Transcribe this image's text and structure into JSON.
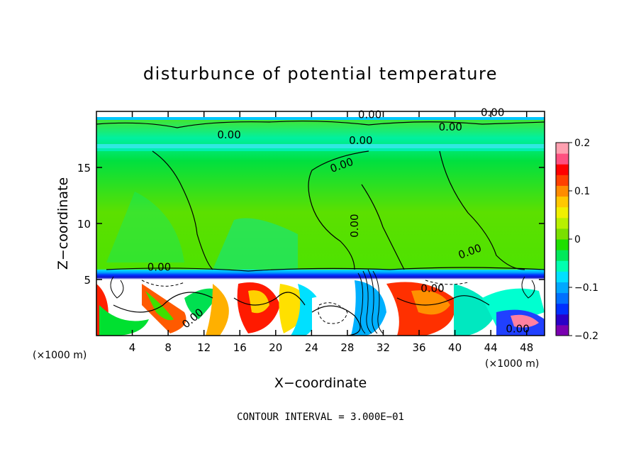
{
  "chart_data": {
    "type": "heatmap",
    "title": "disturbunce of potential temperature",
    "xlabel": "X−coordinate",
    "ylabel": "Z−coordinate",
    "x_unit_left": "(×1000 m)",
    "x_unit_right": "(×1000 m)",
    "footer": "CONTOUR INTERVAL = 3.000E−01",
    "xlim": [
      0,
      50
    ],
    "ylim": [
      0,
      20
    ],
    "x_ticks": [
      4,
      8,
      12,
      16,
      20,
      24,
      28,
      32,
      36,
      40,
      44,
      48
    ],
    "x_tick_labels": [
      "4",
      "8",
      "12",
      "16",
      "20",
      "24",
      "28",
      "32",
      "36",
      "40",
      "44",
      "48"
    ],
    "y_ticks": [
      5,
      10,
      15
    ],
    "y_tick_labels": [
      "5",
      "10",
      "15"
    ],
    "colorbar": {
      "range": [
        -0.2,
        0.2
      ],
      "ticks": [
        0.2,
        0.1,
        0,
        -0.1,
        -0.2
      ],
      "tick_labels": [
        "0.2",
        "0.1",
        "0",
        "−0.1",
        "−0.2"
      ],
      "colors": [
        "#7a00b0",
        "#2a00c8",
        "#0030ff",
        "#0070ff",
        "#00a8ff",
        "#00e0ff",
        "#00ffb0",
        "#00e85a",
        "#1fe000",
        "#7ae000",
        "#b8f000",
        "#f0f000",
        "#ffc800",
        "#ff8c00",
        "#ff4000",
        "#ff0000",
        "#ff5080",
        "#ffa0b0"
      ]
    },
    "contour_labels": [
      {
        "text": "0.00",
        "x": 14.8,
        "y": 17.6,
        "rotate": 0
      },
      {
        "text": "0.00",
        "x": 30.5,
        "y": 19.4,
        "rotate": 0
      },
      {
        "text": "0.00",
        "x": 44.2,
        "y": 19.6,
        "rotate": 0
      },
      {
        "text": "0.00",
        "x": 39.5,
        "y": 18.3,
        "rotate": 0
      },
      {
        "text": "0.00",
        "x": 29.5,
        "y": 17.1,
        "rotate": 0
      },
      {
        "text": "0.00",
        "x": 27.5,
        "y": 14.9,
        "rotate": -20
      },
      {
        "text": "0.00",
        "x": 29.2,
        "y": 9.8,
        "rotate": -90
      },
      {
        "text": "0.00",
        "x": 41.8,
        "y": 7.2,
        "rotate": -20
      },
      {
        "text": "0.00",
        "x": 7.0,
        "y": 5.8,
        "rotate": 0
      },
      {
        "text": "0.00",
        "x": 37.5,
        "y": 3.9,
        "rotate": 0
      },
      {
        "text": "0.00",
        "x": 11.0,
        "y": 1.3,
        "rotate": -40
      },
      {
        "text": "0.00",
        "x": 47.0,
        "y": 0.3,
        "rotate": 0
      }
    ]
  }
}
